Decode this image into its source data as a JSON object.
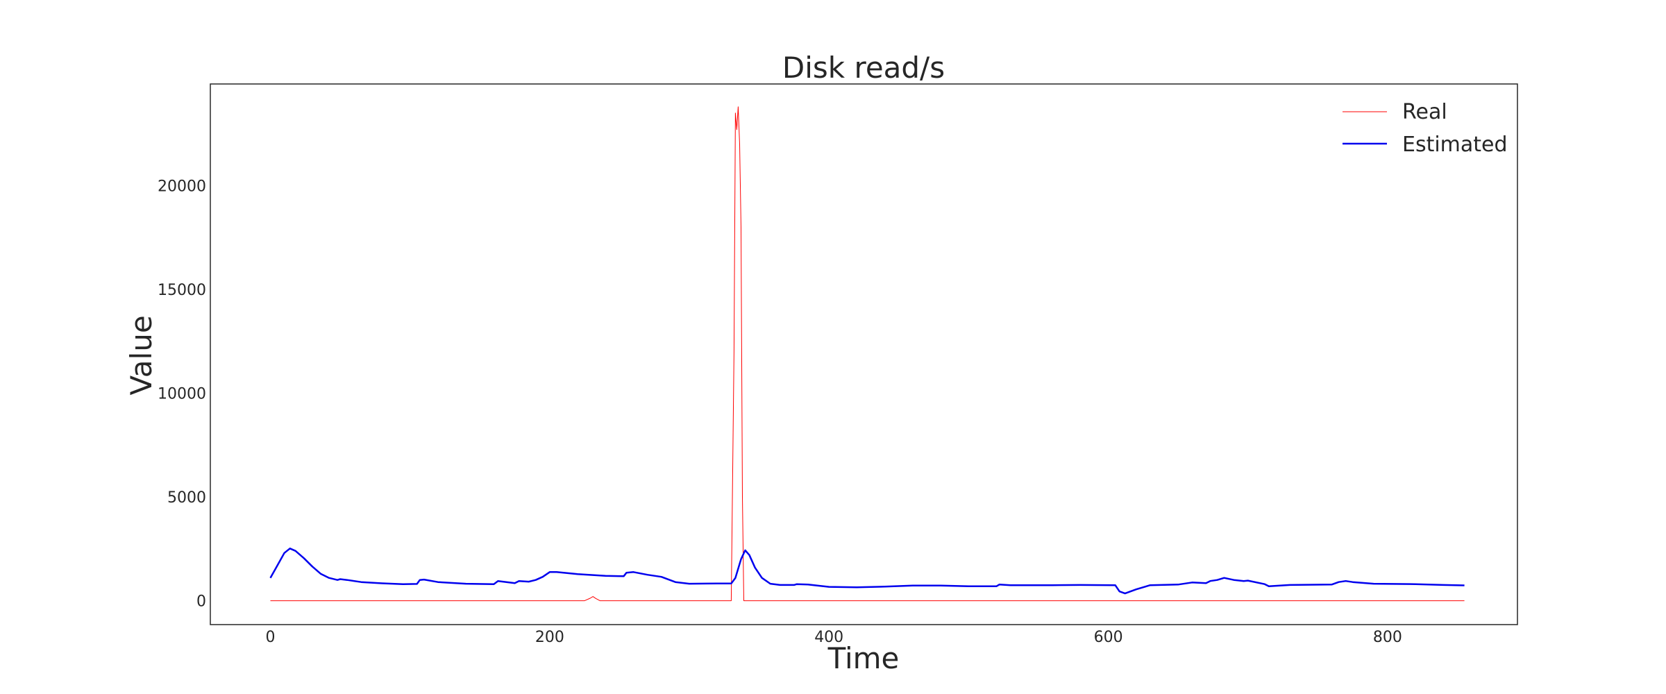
{
  "chart_data": {
    "type": "line",
    "title": "Disk read/s",
    "xlabel": "Time",
    "ylabel": "Value",
    "xlim": [
      -43,
      893
    ],
    "ylim": [
      -1150,
      24900
    ],
    "xticks": [
      0,
      200,
      400,
      600,
      800
    ],
    "yticks": [
      0,
      5000,
      10000,
      15000,
      20000
    ],
    "grid": false,
    "legend_position": "top-right",
    "series": [
      {
        "name": "Real",
        "color": "#ff0000",
        "line_width": 1,
        "points": [
          [
            0,
            0
          ],
          [
            30,
            0
          ],
          [
            60,
            0
          ],
          [
            90,
            0
          ],
          [
            120,
            0
          ],
          [
            150,
            0
          ],
          [
            180,
            0
          ],
          [
            200,
            0
          ],
          [
            225,
            0
          ],
          [
            229,
            120
          ],
          [
            231,
            200
          ],
          [
            233,
            110
          ],
          [
            236,
            0
          ],
          [
            260,
            0
          ],
          [
            290,
            0
          ],
          [
            320,
            0
          ],
          [
            330,
            0
          ],
          [
            332,
            12000
          ],
          [
            333,
            23500
          ],
          [
            334,
            22700
          ],
          [
            335,
            23800
          ],
          [
            336,
            22000
          ],
          [
            337,
            18000
          ],
          [
            338,
            5000
          ],
          [
            339,
            0
          ],
          [
            360,
            0
          ],
          [
            400,
            0
          ],
          [
            450,
            0
          ],
          [
            500,
            0
          ],
          [
            550,
            0
          ],
          [
            600,
            0
          ],
          [
            650,
            0
          ],
          [
            700,
            0
          ],
          [
            750,
            0
          ],
          [
            800,
            0
          ],
          [
            855,
            0
          ]
        ]
      },
      {
        "name": "Estimated",
        "color": "#0000ee",
        "line_width": 2.5,
        "points": [
          [
            0,
            1100
          ],
          [
            5,
            1700
          ],
          [
            10,
            2300
          ],
          [
            14,
            2520
          ],
          [
            18,
            2400
          ],
          [
            24,
            2050
          ],
          [
            30,
            1650
          ],
          [
            36,
            1300
          ],
          [
            42,
            1100
          ],
          [
            48,
            1000
          ],
          [
            50,
            1040
          ],
          [
            55,
            1000
          ],
          [
            65,
            900
          ],
          [
            80,
            840
          ],
          [
            95,
            800
          ],
          [
            105,
            810
          ],
          [
            107,
            1000
          ],
          [
            110,
            1020
          ],
          [
            120,
            900
          ],
          [
            140,
            820
          ],
          [
            160,
            800
          ],
          [
            163,
            950
          ],
          [
            175,
            850
          ],
          [
            178,
            950
          ],
          [
            185,
            920
          ],
          [
            190,
            1000
          ],
          [
            195,
            1150
          ],
          [
            200,
            1380
          ],
          [
            205,
            1380
          ],
          [
            220,
            1280
          ],
          [
            240,
            1200
          ],
          [
            253,
            1180
          ],
          [
            255,
            1350
          ],
          [
            260,
            1380
          ],
          [
            270,
            1250
          ],
          [
            280,
            1150
          ],
          [
            290,
            900
          ],
          [
            300,
            820
          ],
          [
            320,
            830
          ],
          [
            330,
            830
          ],
          [
            333,
            1100
          ],
          [
            337,
            2000
          ],
          [
            340,
            2430
          ],
          [
            343,
            2200
          ],
          [
            347,
            1600
          ],
          [
            352,
            1100
          ],
          [
            358,
            820
          ],
          [
            365,
            760
          ],
          [
            375,
            760
          ],
          [
            377,
            800
          ],
          [
            385,
            780
          ],
          [
            400,
            670
          ],
          [
            420,
            650
          ],
          [
            440,
            680
          ],
          [
            460,
            730
          ],
          [
            480,
            730
          ],
          [
            500,
            700
          ],
          [
            520,
            700
          ],
          [
            522,
            780
          ],
          [
            530,
            750
          ],
          [
            560,
            750
          ],
          [
            580,
            760
          ],
          [
            605,
            750
          ],
          [
            608,
            450
          ],
          [
            612,
            350
          ],
          [
            620,
            550
          ],
          [
            630,
            750
          ],
          [
            650,
            780
          ],
          [
            660,
            880
          ],
          [
            670,
            850
          ],
          [
            673,
            950
          ],
          [
            678,
            1000
          ],
          [
            683,
            1100
          ],
          [
            690,
            1000
          ],
          [
            697,
            950
          ],
          [
            700,
            970
          ],
          [
            712,
            800
          ],
          [
            715,
            700
          ],
          [
            730,
            760
          ],
          [
            760,
            780
          ],
          [
            765,
            900
          ],
          [
            770,
            950
          ],
          [
            775,
            900
          ],
          [
            790,
            820
          ],
          [
            820,
            800
          ],
          [
            840,
            760
          ],
          [
            855,
            740
          ]
        ]
      }
    ]
  }
}
